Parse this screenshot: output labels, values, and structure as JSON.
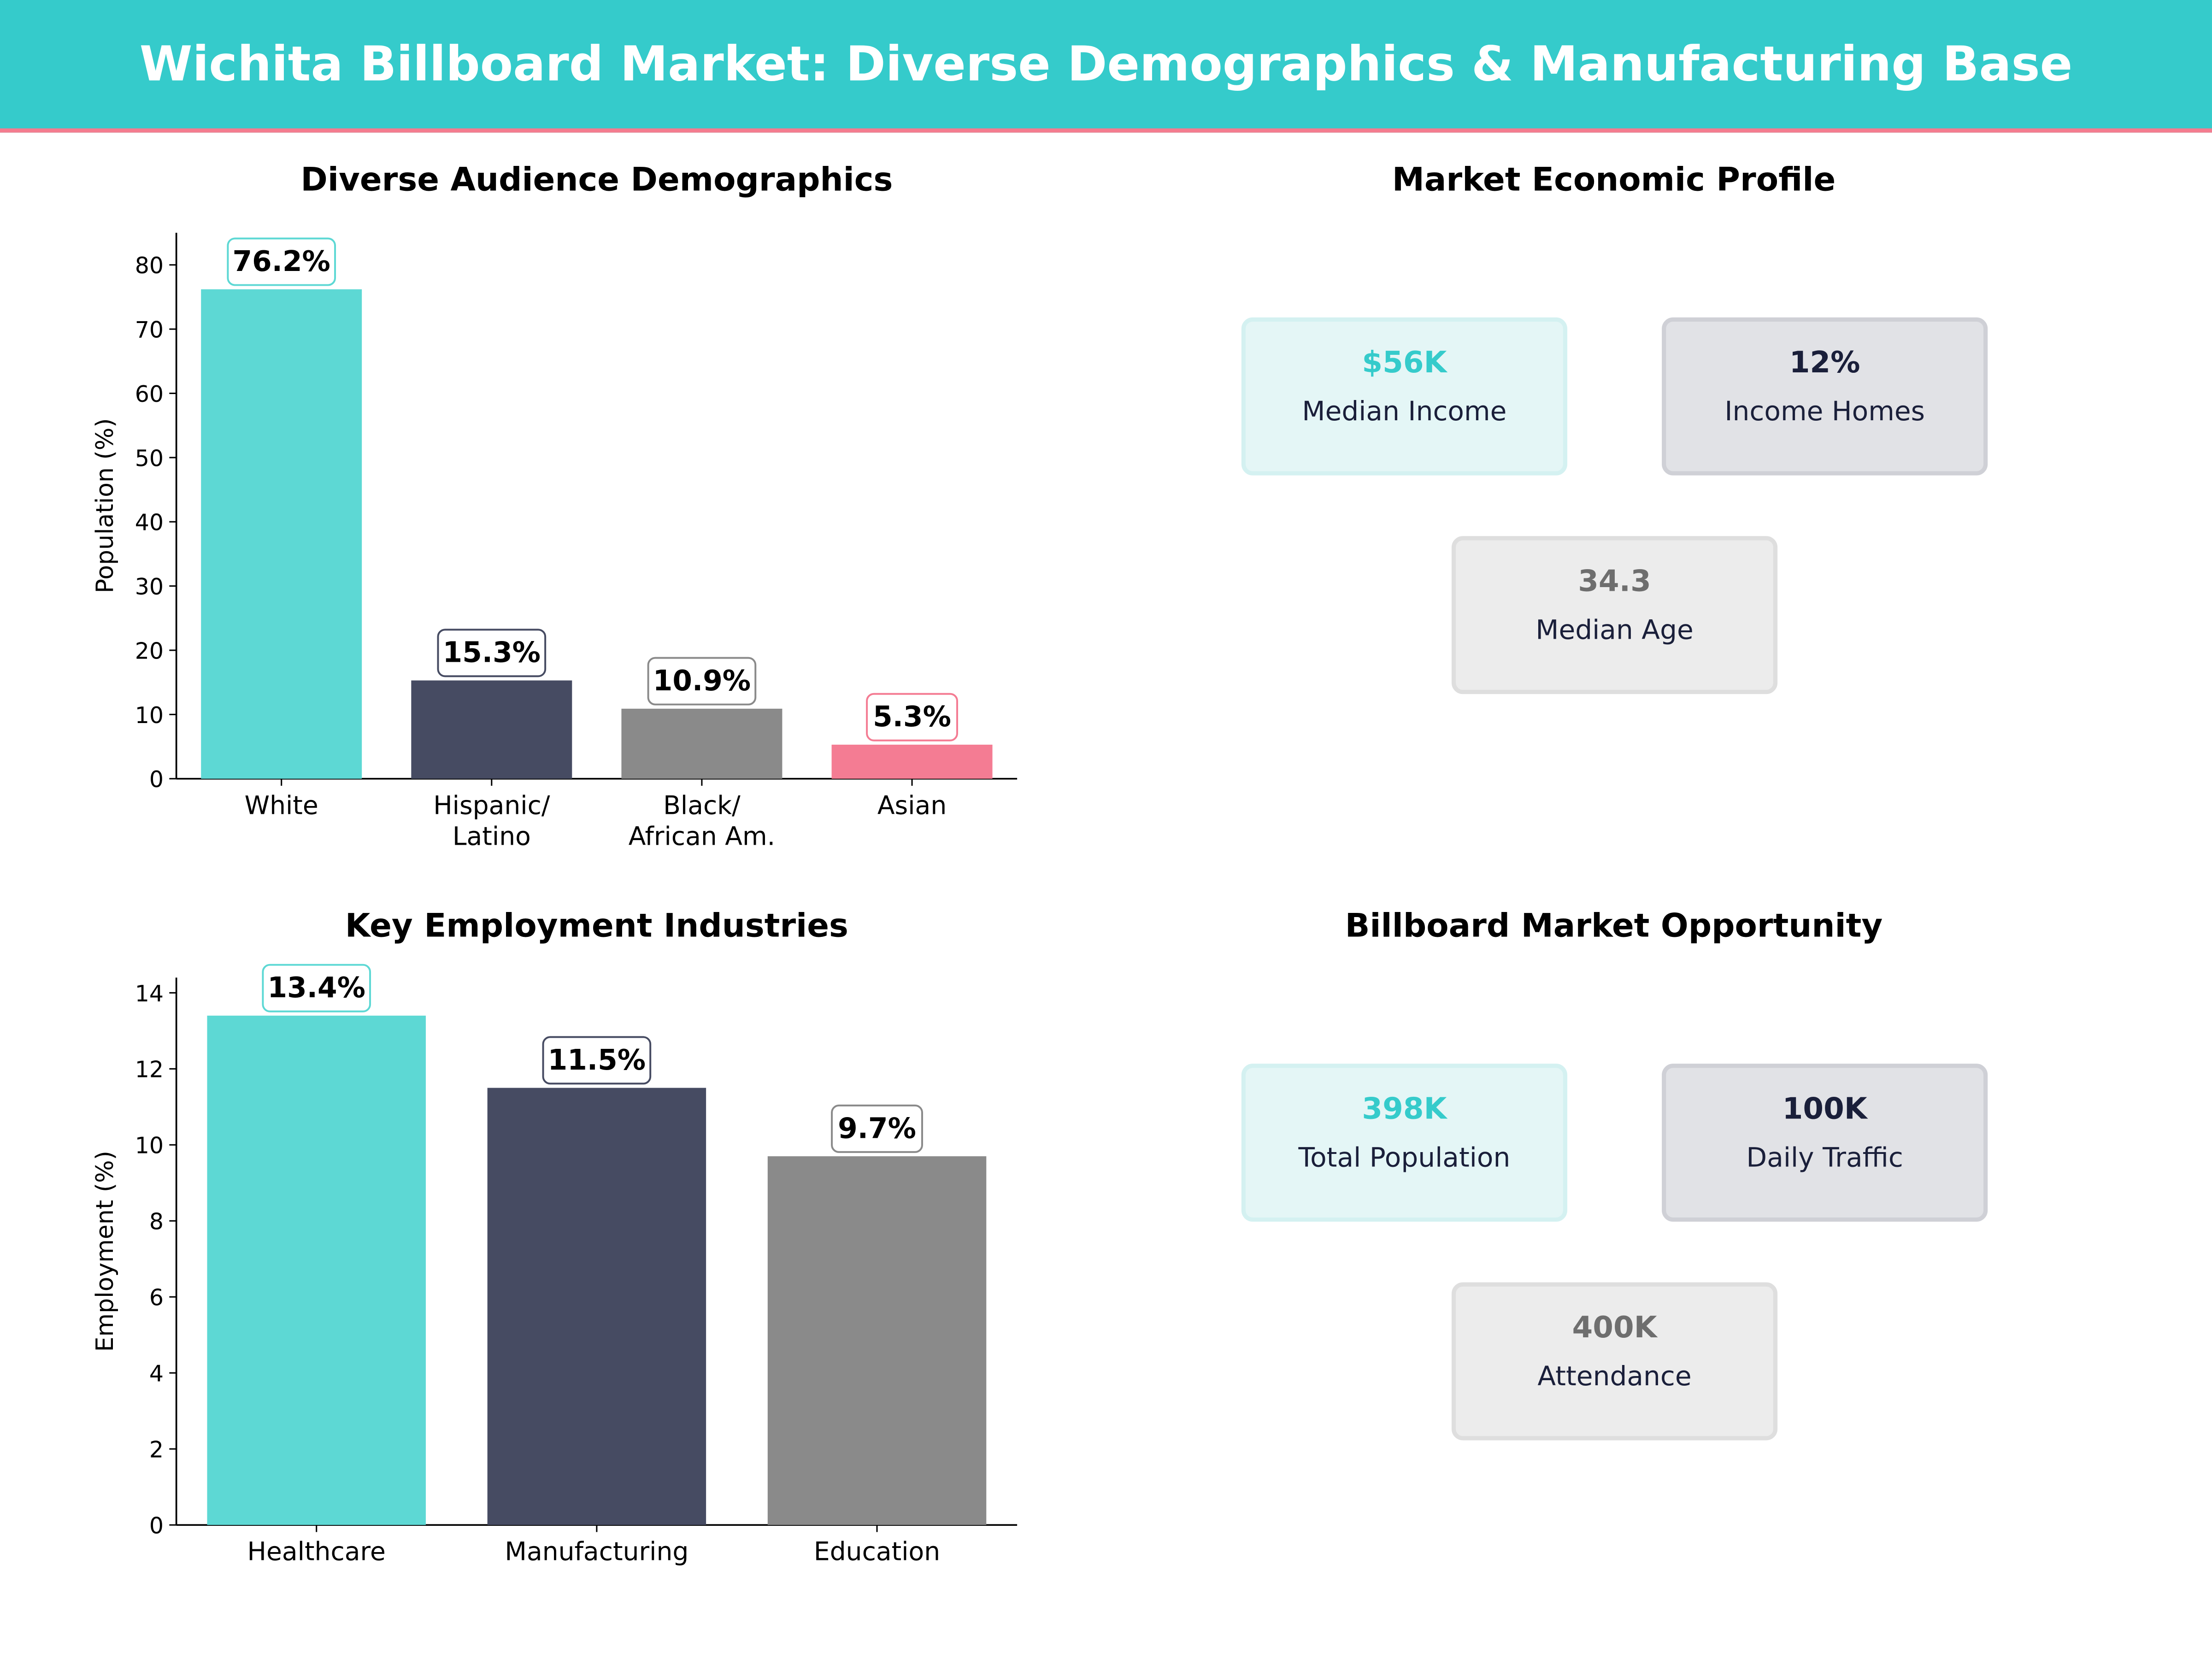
{
  "title": "Wichita Billboard Market: Diverse Demographics & Manufacturing Base",
  "colors": {
    "header": "#35cbcb",
    "accent_line": "#f47c8f",
    "teal": "#5dd8d4",
    "navy": "#464b62",
    "gray": "#8a8a8a",
    "pink": "#f47c93"
  },
  "chart_data": [
    {
      "type": "bar",
      "title": "Diverse Audience Demographics",
      "ylabel": "Population (%)",
      "xlabel": "",
      "categories": [
        "White",
        "Hispanic/\nLatino",
        "Black/\nAfrican Am.",
        "Asian"
      ],
      "values": [
        76.2,
        15.3,
        10.9,
        5.3
      ],
      "data_labels": [
        "76.2%",
        "15.3%",
        "10.9%",
        "5.3%"
      ],
      "colors": [
        "#5dd8d4",
        "#464b62",
        "#8a8a8a",
        "#f47c93"
      ],
      "ylim": [
        0,
        85
      ],
      "yticks": [
        0,
        10,
        20,
        30,
        40,
        50,
        60,
        70,
        80
      ],
      "grid": false
    },
    {
      "type": "bar",
      "title": "Key Employment Industries",
      "ylabel": "Employment (%)",
      "xlabel": "",
      "categories": [
        "Healthcare",
        "Manufacturing",
        "Education"
      ],
      "values": [
        13.4,
        11.5,
        9.7
      ],
      "data_labels": [
        "13.4%",
        "11.5%",
        "9.7%"
      ],
      "colors": [
        "#5dd8d4",
        "#464b62",
        "#8a8a8a"
      ],
      "ylim": [
        0,
        14.4
      ],
      "yticks": [
        0,
        2,
        4,
        6,
        8,
        10,
        12,
        14
      ],
      "grid": false
    }
  ],
  "economic_profile": {
    "title": "Market Economic Profile",
    "cards": [
      {
        "value": "$56K",
        "label": "Median Income"
      },
      {
        "value": "12%",
        "label": "Income Homes"
      },
      {
        "value": "34.3",
        "label": "Median Age"
      }
    ]
  },
  "opportunity": {
    "title": "Billboard Market Opportunity",
    "cards": [
      {
        "value": "398K",
        "label": "Total Population"
      },
      {
        "value": "100K",
        "label": "Daily Traffic"
      },
      {
        "value": "400K",
        "label": "Attendance"
      }
    ]
  }
}
